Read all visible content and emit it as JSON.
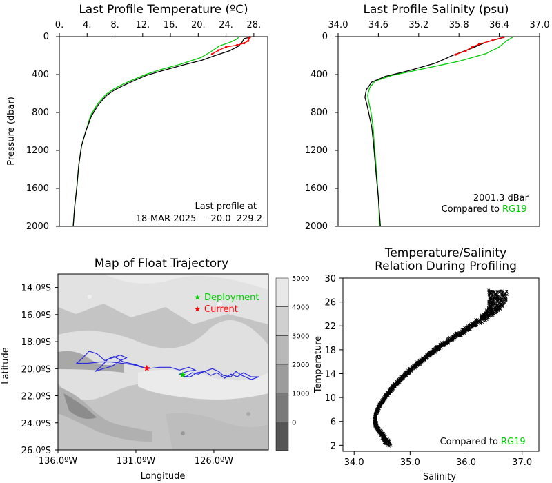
{
  "chart_data": [
    {
      "type": "line",
      "title": "Last Profile Temperature (ºC)",
      "ylabel": "Pressure (dbar)",
      "xlim": [
        0,
        30
      ],
      "ylim": [
        2000,
        0
      ],
      "x_ticks": [
        "0.",
        "4.",
        "8.",
        "12.",
        "16.",
        "20.",
        "24.",
        "28."
      ],
      "y_ticks": [
        "0",
        "400",
        "800",
        "1200",
        "1600",
        "2000"
      ],
      "annotation": [
        "Last profile at",
        "18-MAR-2025    -20.0  229.2"
      ],
      "series": [
        {
          "color": "#000000",
          "points": [
            [
              27.6,
              5
            ],
            [
              26.6,
              20
            ],
            [
              26.3,
              60
            ],
            [
              25.8,
              100
            ],
            [
              24.5,
              150
            ],
            [
              22.4,
              200
            ],
            [
              20.5,
              250
            ],
            [
              17.8,
              300
            ],
            [
              14.8,
              360
            ],
            [
              12.5,
              410
            ],
            [
              10.9,
              460
            ],
            [
              9.4,
              510
            ],
            [
              8.0,
              560
            ],
            [
              6.8,
              620
            ],
            [
              5.6,
              720
            ],
            [
              4.6,
              840
            ],
            [
              3.8,
              1000
            ],
            [
              3.2,
              1150
            ],
            [
              2.8,
              1350
            ],
            [
              2.5,
              1600
            ],
            [
              2.2,
              1800
            ],
            [
              2.0,
              2000
            ]
          ]
        },
        {
          "color": "#ff0000",
          "points": [
            [
              27.4,
              5
            ],
            [
              27.3,
              20
            ],
            [
              27.2,
              45
            ],
            [
              26.6,
              70
            ],
            [
              25.6,
              90
            ],
            [
              24.0,
              110
            ],
            [
              22.9,
              145
            ],
            [
              22.0,
              185
            ]
          ]
        },
        {
          "color": "#00cc00",
          "points": [
            [
              25.8,
              5
            ],
            [
              25.6,
              25
            ],
            [
              24.6,
              60
            ],
            [
              23.0,
              100
            ],
            [
              21.8,
              160
            ],
            [
              20.4,
              220
            ],
            [
              17.5,
              290
            ],
            [
              14.5,
              350
            ],
            [
              12.4,
              400
            ],
            [
              10.8,
              450
            ],
            [
              9.2,
              500
            ],
            [
              7.9,
              550
            ],
            [
              6.7,
              610
            ],
            [
              5.5,
              710
            ],
            [
              4.5,
              830
            ],
            [
              3.8,
              1000
            ],
            [
              3.2,
              1150
            ],
            [
              2.8,
              1350
            ],
            [
              2.5,
              1600
            ],
            [
              2.2,
              1800
            ],
            [
              2.0,
              2000
            ]
          ]
        }
      ]
    },
    {
      "type": "line",
      "title": "Last Profile Salinity (psu)",
      "xlim": [
        34.0,
        37.0
      ],
      "ylim": [
        2000,
        0
      ],
      "x_ticks": [
        "34.0",
        "34.6",
        "35.2",
        "35.8",
        "36.4",
        "37.0"
      ],
      "y_ticks": [
        "0",
        "400",
        "800",
        "1200",
        "1600",
        "2000"
      ],
      "annotation": [
        "2001.3 dBar",
        "Compared to",
        "RG19"
      ],
      "series": [
        {
          "color": "#000000",
          "points": [
            [
              36.48,
              5
            ],
            [
              36.2,
              60
            ],
            [
              36.0,
              120
            ],
            [
              35.7,
              200
            ],
            [
              35.45,
              280
            ],
            [
              35.05,
              360
            ],
            [
              34.7,
              420
            ],
            [
              34.5,
              480
            ],
            [
              34.42,
              560
            ],
            [
              34.4,
              640
            ],
            [
              34.43,
              720
            ],
            [
              34.46,
              820
            ],
            [
              34.5,
              950
            ],
            [
              34.53,
              1150
            ],
            [
              34.56,
              1400
            ],
            [
              34.6,
              1700
            ],
            [
              34.63,
              2000
            ]
          ]
        },
        {
          "color": "#ff0000",
          "points": [
            [
              36.46,
              5
            ],
            [
              36.3,
              40
            ],
            [
              36.1,
              80
            ],
            [
              36.0,
              110
            ],
            [
              35.9,
              150
            ],
            [
              35.75,
              190
            ]
          ]
        },
        {
          "color": "#00cc00",
          "points": [
            [
              36.6,
              5
            ],
            [
              36.5,
              50
            ],
            [
              36.4,
              110
            ],
            [
              36.2,
              180
            ],
            [
              35.8,
              260
            ],
            [
              35.2,
              350
            ],
            [
              34.8,
              410
            ],
            [
              34.55,
              470
            ],
            [
              34.47,
              540
            ],
            [
              34.44,
              620
            ],
            [
              34.46,
              700
            ],
            [
              34.49,
              800
            ],
            [
              34.52,
              950
            ],
            [
              34.54,
              1150
            ],
            [
              34.57,
              1400
            ],
            [
              34.6,
              1700
            ],
            [
              34.62,
              2000
            ]
          ]
        }
      ]
    },
    {
      "type": "map",
      "title": "Map of Float Trajectory",
      "xlabel": "Longitude",
      "ylabel": "Latitude",
      "xlim": [
        -136.0,
        -122.5
      ],
      "ylim": [
        -26.0,
        -13.0
      ],
      "x_ticks": [
        "136.0ºW",
        "131.0ºW",
        "126.0ºW"
      ],
      "y_ticks": [
        "14.0ºS",
        "16.0ºS",
        "18.0ºS",
        "20.0ºS",
        "22.0ºS",
        "24.0ºS",
        "26.0ºS"
      ],
      "legend": [
        {
          "label": "Deployment",
          "color": "#00cc00"
        },
        {
          "label": "Current",
          "color": "#ff0000"
        }
      ],
      "colorbar": {
        "ticks": [
          "5000",
          "4000",
          "3000",
          "2000",
          "1000",
          "0"
        ],
        "colors": [
          "#e8e8e8",
          "#d0d0d0",
          "#b8b8b8",
          "#9c9c9c",
          "#7a7a7a",
          "#555555"
        ]
      },
      "deployment": [
        -128.0,
        -20.5
      ],
      "current": [
        -130.3,
        -20.0
      ],
      "trajectory_color": "#2a2ae0",
      "trajectory": [
        [
          -128.0,
          -20.5
        ],
        [
          -127.8,
          -20.6
        ],
        [
          -127.4,
          -20.3
        ],
        [
          -127.0,
          -20.4
        ],
        [
          -126.6,
          -20.2
        ],
        [
          -126.2,
          -20.5
        ],
        [
          -125.8,
          -20.3
        ],
        [
          -125.3,
          -20.7
        ],
        [
          -124.9,
          -20.4
        ],
        [
          -124.5,
          -20.6
        ],
        [
          -124.1,
          -20.3
        ],
        [
          -123.6,
          -20.6
        ],
        [
          -123.1,
          -20.6
        ],
        [
          -123.6,
          -20.8
        ],
        [
          -124.2,
          -20.5
        ],
        [
          -124.6,
          -20.2
        ],
        [
          -124.9,
          -20.6
        ],
        [
          -125.4,
          -20.5
        ],
        [
          -125.7,
          -20.2
        ],
        [
          -126.1,
          -20.0
        ],
        [
          -126.6,
          -20.2
        ],
        [
          -127.1,
          -20.3
        ],
        [
          -127.5,
          -20.6
        ],
        [
          -127.9,
          -20.6
        ],
        [
          -128.2,
          -20.4
        ],
        [
          -127.7,
          -20.2
        ],
        [
          -127.2,
          -20.1
        ],
        [
          -127.6,
          -19.9
        ],
        [
          -128.2,
          -20.1
        ],
        [
          -128.8,
          -19.9
        ],
        [
          -129.5,
          -19.9
        ],
        [
          -130.3,
          -20.0
        ],
        [
          -131.0,
          -19.7
        ],
        [
          -131.8,
          -19.5
        ],
        [
          -132.4,
          -19.1
        ],
        [
          -132.8,
          -19.3
        ],
        [
          -133.2,
          -19.8
        ],
        [
          -133.6,
          -20.2
        ],
        [
          -133.1,
          -20.0
        ],
        [
          -132.5,
          -19.8
        ],
        [
          -132.0,
          -19.4
        ],
        [
          -131.6,
          -19.2
        ],
        [
          -132.0,
          -19.0
        ],
        [
          -132.5,
          -19.2
        ],
        [
          -133.0,
          -19.4
        ],
        [
          -133.5,
          -18.9
        ],
        [
          -134.0,
          -18.7
        ],
        [
          -134.4,
          -19.2
        ],
        [
          -134.8,
          -19.6
        ],
        [
          -134.1,
          -19.6
        ],
        [
          -133.3,
          -19.5
        ],
        [
          -132.6,
          -19.5
        ],
        [
          -131.9,
          -19.6
        ],
        [
          -131.2,
          -19.7
        ],
        [
          -130.6,
          -19.9
        ],
        [
          -130.3,
          -20.0
        ]
      ]
    },
    {
      "type": "scatter",
      "title": [
        "Temperature/Salinity",
        "Relation During Profiling"
      ],
      "xlabel": "Salinity",
      "ylabel": "Temperature",
      "xlim": [
        33.8,
        37.3
      ],
      "ylim": [
        1.0,
        30.0
      ],
      "x_ticks": [
        "34.0",
        "35.0",
        "36.0",
        "37.0"
      ],
      "y_ticks": [
        "2",
        "6",
        "10",
        "14",
        "18",
        "22",
        "26",
        "30"
      ],
      "annotation": [
        "Compared to",
        "RG19"
      ],
      "marker_color": "#000000",
      "ts_curve": [
        [
          34.6,
          2.1
        ],
        [
          34.55,
          3.0
        ],
        [
          34.48,
          4.0
        ],
        [
          34.4,
          5.0
        ],
        [
          34.37,
          6.0
        ],
        [
          34.38,
          7.0
        ],
        [
          34.42,
          8.0
        ],
        [
          34.48,
          9.0
        ],
        [
          34.55,
          10.0
        ],
        [
          34.63,
          11.0
        ],
        [
          34.72,
          12.0
        ],
        [
          34.82,
          13.0
        ],
        [
          34.93,
          14.0
        ],
        [
          35.05,
          15.0
        ],
        [
          35.18,
          16.0
        ],
        [
          35.31,
          17.0
        ],
        [
          35.45,
          18.0
        ],
        [
          35.6,
          19.0
        ],
        [
          35.76,
          20.0
        ],
        [
          35.93,
          21.0
        ],
        [
          36.1,
          22.0
        ],
        [
          36.27,
          23.0
        ],
        [
          36.41,
          24.0
        ],
        [
          36.5,
          25.0
        ],
        [
          36.54,
          26.0
        ],
        [
          36.55,
          27.0
        ],
        [
          36.56,
          28.0
        ]
      ],
      "ts_spread": [
        [
          0.12,
          2.1
        ],
        [
          0.08,
          3.0
        ],
        [
          0.05,
          4.5
        ],
        [
          0.03,
          6.0
        ],
        [
          0.03,
          10.0
        ],
        [
          0.04,
          14.0
        ],
        [
          0.05,
          18.0
        ],
        [
          0.06,
          20.0
        ],
        [
          0.1,
          22.0
        ],
        [
          0.18,
          24.0
        ],
        [
          0.3,
          26.0
        ],
        [
          0.38,
          28.5
        ]
      ]
    }
  ]
}
